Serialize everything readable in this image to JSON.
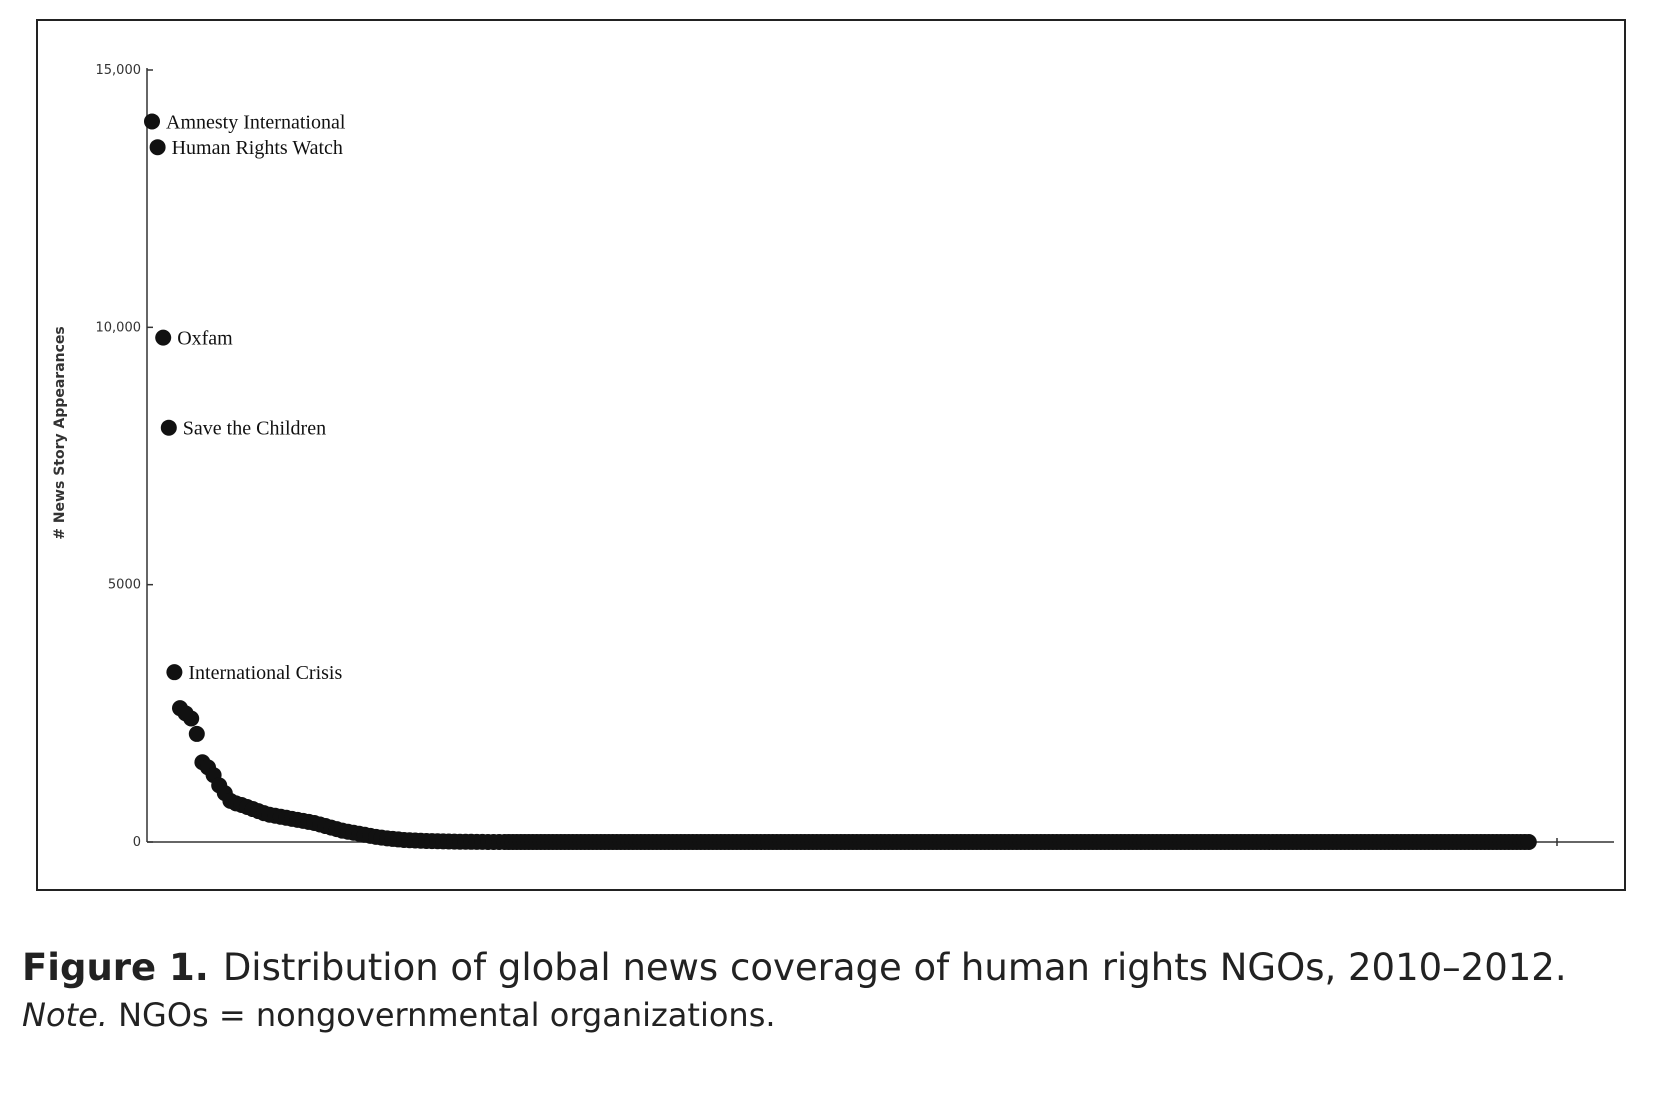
{
  "chart_data": {
    "type": "scatter",
    "title": "",
    "xlabel": "",
    "ylabel": "# News Story Appearances",
    "ylim": [
      0,
      15000
    ],
    "yticks": [
      0,
      5000,
      10000,
      15000
    ],
    "ytick_labels": [
      "0",
      "5000",
      "10,000",
      "15,000"
    ],
    "grid": false,
    "legend": "none",
    "marker_color": "#111111",
    "labeled_points": [
      {
        "label": "Amnesty International",
        "rank": 1,
        "value": 14000
      },
      {
        "label": "Human Rights Watch",
        "rank": 2,
        "value": 13500
      },
      {
        "label": "Oxfam",
        "rank": 3,
        "value": 9800
      },
      {
        "label": "Save the Children",
        "rank": 4,
        "value": 8050
      },
      {
        "label": "International Crisis",
        "rank": 5,
        "value": 3300
      }
    ],
    "series": [
      {
        "values": [
          14000,
          13500,
          9800,
          8050,
          3300,
          2600,
          2500,
          2400,
          2100,
          1550,
          1450,
          1300,
          1100,
          950,
          800,
          750,
          720,
          680,
          640,
          600,
          560,
          530,
          510,
          490,
          470,
          450,
          430,
          410,
          390,
          370,
          340,
          310,
          280,
          250,
          220,
          200,
          180,
          160,
          140,
          120,
          100,
          85,
          70,
          60,
          50,
          40,
          35,
          30,
          25,
          20,
          18,
          15,
          12,
          10,
          8,
          6,
          5,
          4,
          3,
          2,
          1,
          1,
          0
        ]
      }
    ]
  },
  "caption": {
    "label": "Figure 1.",
    "text": "Distribution of global news coverage of human rights NGOs, 2010–2012.",
    "note_label": "Note.",
    "note_text": "NGOs = nongovernmental organizations."
  }
}
